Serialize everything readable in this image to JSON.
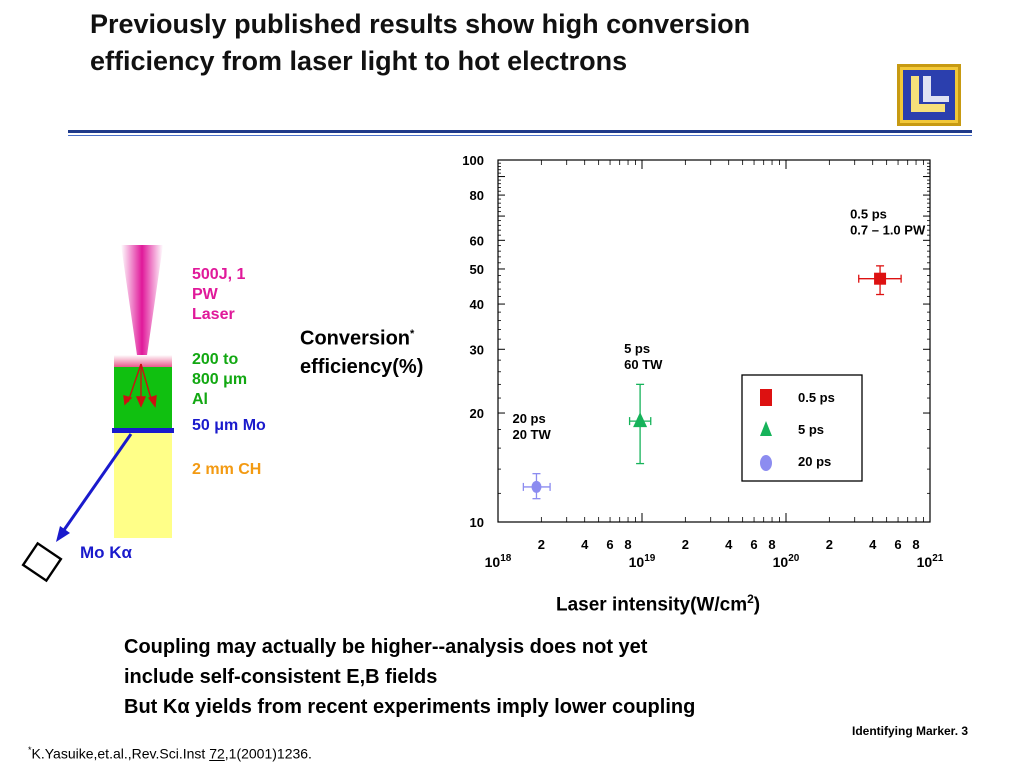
{
  "slide": {
    "title": "Previously published results show high conversion efficiency from laser light to hot electrons",
    "diagram_labels": {
      "laser": [
        "500J, 1",
        "PW",
        "Laser"
      ],
      "al": [
        "200 to",
        "800 μm",
        "Al"
      ],
      "mo": "50 μm Mo",
      "ch": "2 mm CH",
      "mo_k_alpha": "Mo Kα"
    },
    "y_axis_label": {
      "line1": "Conversion",
      "star": "*",
      "line2": "efficiency(%)"
    },
    "x_axis_label": {
      "text": "Laser intensity(W/cm",
      "sup": "2",
      "close": ")"
    },
    "bottom_text": [
      "Coupling may actually be higher--analysis does not yet",
      "include self-consistent E,B fields",
      "But Kα yields from recent experiments imply lower coupling"
    ],
    "marker": "Identifying Marker. 3",
    "citation": {
      "star": "*",
      "pre": "K.Yasuike,et.al.,Rev.Sci.Inst ",
      "vol": "72",
      "post": ",1(2001)1236."
    },
    "colors": {
      "laser": "#e0199a",
      "al": "#12a812",
      "mo": "#1a1acc",
      "ch": "#f39a12",
      "rule": "#1f3a8a"
    }
  },
  "chart_data": {
    "type": "scatter",
    "x_scale": "log",
    "y_scale": "log",
    "xlim": [
      1e+18,
      1e+21
    ],
    "ylim": [
      10,
      100
    ],
    "xlabel": "Laser intensity(W/cm2)",
    "ylabel": "Conversion* efficiency(%)",
    "y_ticks": [
      {
        "value": 10,
        "label": "10"
      },
      {
        "value": 20,
        "label": "20"
      },
      {
        "value": 30,
        "label": "30"
      },
      {
        "value": 40,
        "label": "40"
      },
      {
        "value": 50,
        "label": "50"
      },
      {
        "value": 60,
        "label": "60"
      },
      {
        "value": 80,
        "label": "80"
      },
      {
        "value": 100,
        "label": "100"
      }
    ],
    "x_decades": [
      {
        "value": 1e+18,
        "base": "10",
        "exp": "18"
      },
      {
        "value": 1e+19,
        "base": "10",
        "exp": "19"
      },
      {
        "value": 1e+20,
        "base": "10",
        "exp": "20"
      },
      {
        "value": 1e+21,
        "base": "10",
        "exp": "21"
      }
    ],
    "x_minor_labels": [
      "2",
      "4",
      "6",
      "8"
    ],
    "series": [
      {
        "name": "0.5 ps",
        "marker": "square",
        "color": "#dd1111",
        "x": 4.5e+20,
        "y": 47,
        "xerr": [
          3.2e+20,
          6.3e+20
        ],
        "yerr": [
          42.5,
          51
        ],
        "annotation": [
          "0.5 ps",
          "0.7 – 1.0 PW"
        ]
      },
      {
        "name": "5 ps",
        "marker": "triangle",
        "color": "#16b35a",
        "x": 9.7e+18,
        "y": 19,
        "xerr": [
          8.2e+18,
          1.15e+19
        ],
        "yerr": [
          14.5,
          24
        ],
        "annotation": [
          "5 ps",
          "60 TW"
        ]
      },
      {
        "name": "20 ps",
        "marker": "circle",
        "color": "#8c8cf0",
        "x": 1.85e+18,
        "y": 12.5,
        "xerr": [
          1.5e+18,
          2.3e+18
        ],
        "yerr": [
          11.6,
          13.6
        ],
        "annotation": [
          "20 ps",
          "20 TW"
        ]
      }
    ],
    "legend": {
      "placement": "lower-right",
      "entries": [
        "0.5 ps",
        "5 ps",
        "20 ps"
      ]
    }
  }
}
